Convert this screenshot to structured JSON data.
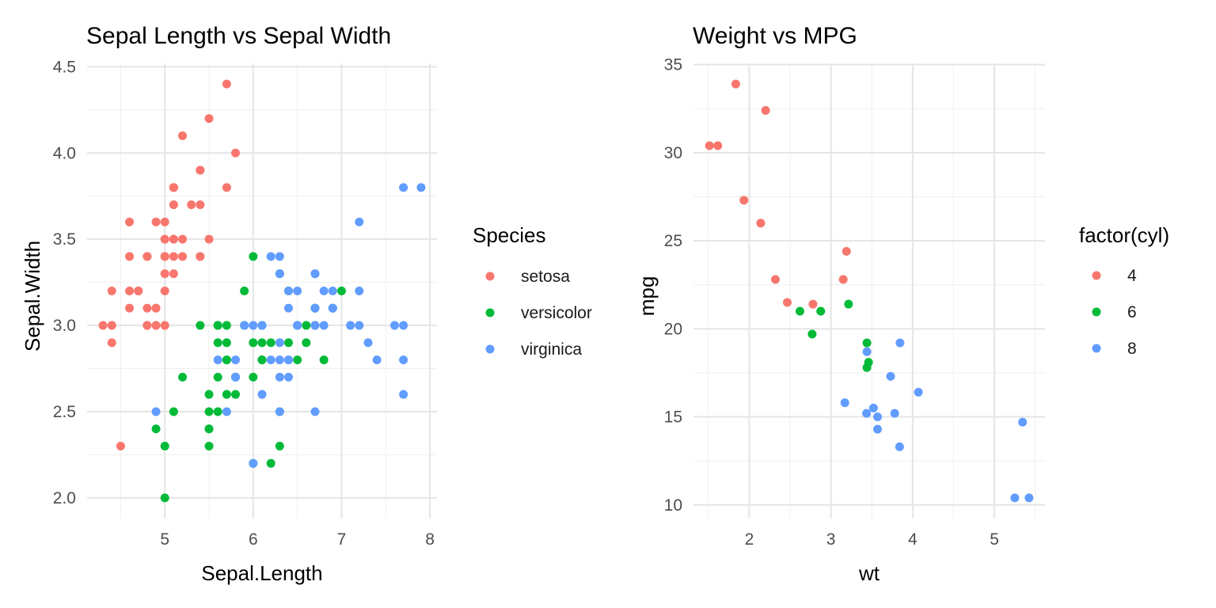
{
  "chart_data": [
    {
      "type": "scatter",
      "title": "Sepal Length vs Sepal Width",
      "xlabel": "Sepal.Length",
      "ylabel": "Sepal.Width",
      "xlim": [
        4.3,
        7.9
      ],
      "ylim": [
        2.0,
        4.4
      ],
      "x_ticks": [
        "5",
        "6",
        "7",
        "8"
      ],
      "y_ticks": [
        "2.0",
        "2.5",
        "3.0",
        "3.5",
        "4.0",
        "4.5"
      ],
      "grid": true,
      "legend": {
        "title": "Species",
        "position": "right"
      },
      "series": [
        {
          "name": "setosa",
          "color": "#F8766D",
          "points": [
            [
              5.1,
              3.5
            ],
            [
              4.9,
              3.0
            ],
            [
              4.7,
              3.2
            ],
            [
              4.6,
              3.1
            ],
            [
              5.0,
              3.6
            ],
            [
              5.4,
              3.9
            ],
            [
              4.6,
              3.4
            ],
            [
              5.0,
              3.4
            ],
            [
              4.4,
              2.9
            ],
            [
              4.9,
              3.1
            ],
            [
              5.4,
              3.7
            ],
            [
              4.8,
              3.4
            ],
            [
              4.8,
              3.0
            ],
            [
              4.3,
              3.0
            ],
            [
              5.8,
              4.0
            ],
            [
              5.7,
              4.4
            ],
            [
              5.4,
              3.9
            ],
            [
              5.1,
              3.5
            ],
            [
              5.7,
              3.8
            ],
            [
              5.1,
              3.8
            ],
            [
              5.4,
              3.4
            ],
            [
              5.1,
              3.7
            ],
            [
              4.6,
              3.6
            ],
            [
              5.1,
              3.3
            ],
            [
              4.8,
              3.4
            ],
            [
              5.0,
              3.0
            ],
            [
              5.0,
              3.4
            ],
            [
              5.2,
              3.5
            ],
            [
              5.2,
              3.4
            ],
            [
              4.7,
              3.2
            ],
            [
              4.8,
              3.1
            ],
            [
              5.4,
              3.4
            ],
            [
              5.2,
              4.1
            ],
            [
              5.5,
              4.2
            ],
            [
              4.9,
              3.1
            ],
            [
              5.0,
              3.2
            ],
            [
              5.5,
              3.5
            ],
            [
              4.9,
              3.6
            ],
            [
              4.4,
              3.0
            ],
            [
              5.1,
              3.4
            ],
            [
              5.0,
              3.5
            ],
            [
              4.5,
              2.3
            ],
            [
              4.4,
              3.2
            ],
            [
              5.0,
              3.5
            ],
            [
              5.1,
              3.8
            ],
            [
              4.8,
              3.0
            ],
            [
              5.1,
              3.8
            ],
            [
              4.6,
              3.2
            ],
            [
              5.3,
              3.7
            ],
            [
              5.0,
              3.3
            ]
          ]
        },
        {
          "name": "versicolor",
          "color": "#00BA38",
          "points": [
            [
              7.0,
              3.2
            ],
            [
              6.4,
              3.2
            ],
            [
              6.9,
              3.1
            ],
            [
              5.5,
              2.3
            ],
            [
              6.5,
              2.8
            ],
            [
              5.7,
              2.8
            ],
            [
              6.3,
              3.3
            ],
            [
              4.9,
              2.4
            ],
            [
              6.6,
              2.9
            ],
            [
              5.2,
              2.7
            ],
            [
              5.0,
              2.0
            ],
            [
              5.9,
              3.0
            ],
            [
              6.0,
              2.2
            ],
            [
              6.1,
              2.9
            ],
            [
              5.6,
              2.9
            ],
            [
              6.7,
              3.1
            ],
            [
              5.6,
              3.0
            ],
            [
              5.8,
              2.7
            ],
            [
              6.2,
              2.2
            ],
            [
              5.6,
              2.5
            ],
            [
              5.9,
              3.2
            ],
            [
              6.1,
              2.8
            ],
            [
              6.3,
              2.5
            ],
            [
              6.1,
              2.8
            ],
            [
              6.4,
              2.9
            ],
            [
              6.6,
              3.0
            ],
            [
              6.8,
              2.8
            ],
            [
              6.7,
              3.0
            ],
            [
              6.0,
              2.9
            ],
            [
              5.7,
              2.6
            ],
            [
              5.5,
              2.4
            ],
            [
              5.5,
              2.4
            ],
            [
              5.8,
              2.7
            ],
            [
              6.0,
              2.7
            ],
            [
              5.4,
              3.0
            ],
            [
              6.0,
              3.4
            ],
            [
              6.7,
              3.1
            ],
            [
              6.3,
              2.3
            ],
            [
              5.6,
              3.0
            ],
            [
              5.5,
              2.5
            ],
            [
              5.5,
              2.6
            ],
            [
              6.1,
              3.0
            ],
            [
              5.8,
              2.6
            ],
            [
              5.0,
              2.3
            ],
            [
              5.6,
              2.7
            ],
            [
              5.7,
              3.0
            ],
            [
              5.7,
              2.9
            ],
            [
              6.2,
              2.9
            ],
            [
              5.1,
              2.5
            ],
            [
              5.7,
              2.8
            ]
          ]
        },
        {
          "name": "virginica",
          "color": "#619CFF",
          "points": [
            [
              6.3,
              3.3
            ],
            [
              5.8,
              2.7
            ],
            [
              7.1,
              3.0
            ],
            [
              6.3,
              2.9
            ],
            [
              6.5,
              3.0
            ],
            [
              7.6,
              3.0
            ],
            [
              4.9,
              2.5
            ],
            [
              7.3,
              2.9
            ],
            [
              6.7,
              2.5
            ],
            [
              7.2,
              3.6
            ],
            [
              6.5,
              3.2
            ],
            [
              6.4,
              2.7
            ],
            [
              6.8,
              3.0
            ],
            [
              5.7,
              2.5
            ],
            [
              5.8,
              2.8
            ],
            [
              6.4,
              3.2
            ],
            [
              6.5,
              3.0
            ],
            [
              7.7,
              3.8
            ],
            [
              7.7,
              2.6
            ],
            [
              6.0,
              2.2
            ],
            [
              6.9,
              3.2
            ],
            [
              5.6,
              2.8
            ],
            [
              7.7,
              2.8
            ],
            [
              6.3,
              2.7
            ],
            [
              6.7,
              3.3
            ],
            [
              7.2,
              3.2
            ],
            [
              6.2,
              2.8
            ],
            [
              6.1,
              3.0
            ],
            [
              6.4,
              2.8
            ],
            [
              7.2,
              3.0
            ],
            [
              7.4,
              2.8
            ],
            [
              7.9,
              3.8
            ],
            [
              6.4,
              2.8
            ],
            [
              6.3,
              2.8
            ],
            [
              6.1,
              2.6
            ],
            [
              7.7,
              3.0
            ],
            [
              6.3,
              3.4
            ],
            [
              6.4,
              3.1
            ],
            [
              6.0,
              3.0
            ],
            [
              6.9,
              3.1
            ],
            [
              6.7,
              3.1
            ],
            [
              6.9,
              3.1
            ],
            [
              5.8,
              2.7
            ],
            [
              6.8,
              3.2
            ],
            [
              6.7,
              3.3
            ],
            [
              6.7,
              3.0
            ],
            [
              6.3,
              2.5
            ],
            [
              6.5,
              3.0
            ],
            [
              6.2,
              3.4
            ],
            [
              5.9,
              3.0
            ]
          ]
        }
      ]
    },
    {
      "type": "scatter",
      "title": "Weight vs MPG",
      "xlabel": "wt",
      "ylabel": "mpg",
      "xlim": [
        1.513,
        5.424
      ],
      "ylim": [
        10.4,
        33.9
      ],
      "x_ticks": [
        "2",
        "3",
        "4",
        "5"
      ],
      "y_ticks": [
        "10",
        "15",
        "20",
        "25",
        "30",
        "35"
      ],
      "grid": true,
      "legend": {
        "title": "factor(cyl)",
        "position": "right"
      },
      "series": [
        {
          "name": "4",
          "color": "#F8766D",
          "points": [
            [
              2.32,
              22.8
            ],
            [
              3.19,
              24.4
            ],
            [
              3.15,
              22.8
            ],
            [
              2.2,
              32.4
            ],
            [
              1.615,
              30.4
            ],
            [
              1.835,
              33.9
            ],
            [
              2.465,
              21.5
            ],
            [
              1.935,
              27.3
            ],
            [
              2.14,
              26.0
            ],
            [
              1.513,
              30.4
            ],
            [
              2.78,
              21.4
            ]
          ]
        },
        {
          "name": "6",
          "color": "#00BA38",
          "points": [
            [
              2.62,
              21.0
            ],
            [
              2.875,
              21.0
            ],
            [
              3.215,
              21.4
            ],
            [
              3.46,
              18.1
            ],
            [
              3.44,
              19.2
            ],
            [
              3.44,
              17.8
            ],
            [
              2.77,
              19.7
            ]
          ]
        },
        {
          "name": "8",
          "color": "#619CFF",
          "points": [
            [
              3.44,
              18.7
            ],
            [
              3.57,
              14.3
            ],
            [
              4.07,
              16.4
            ],
            [
              3.73,
              17.3
            ],
            [
              3.78,
              15.2
            ],
            [
              5.25,
              10.4
            ],
            [
              5.424,
              10.4
            ],
            [
              5.345,
              14.7
            ],
            [
              3.52,
              15.5
            ],
            [
              3.435,
              15.2
            ],
            [
              3.84,
              13.3
            ],
            [
              3.845,
              19.2
            ],
            [
              3.17,
              15.8
            ],
            [
              3.57,
              15.0
            ]
          ]
        }
      ]
    }
  ]
}
